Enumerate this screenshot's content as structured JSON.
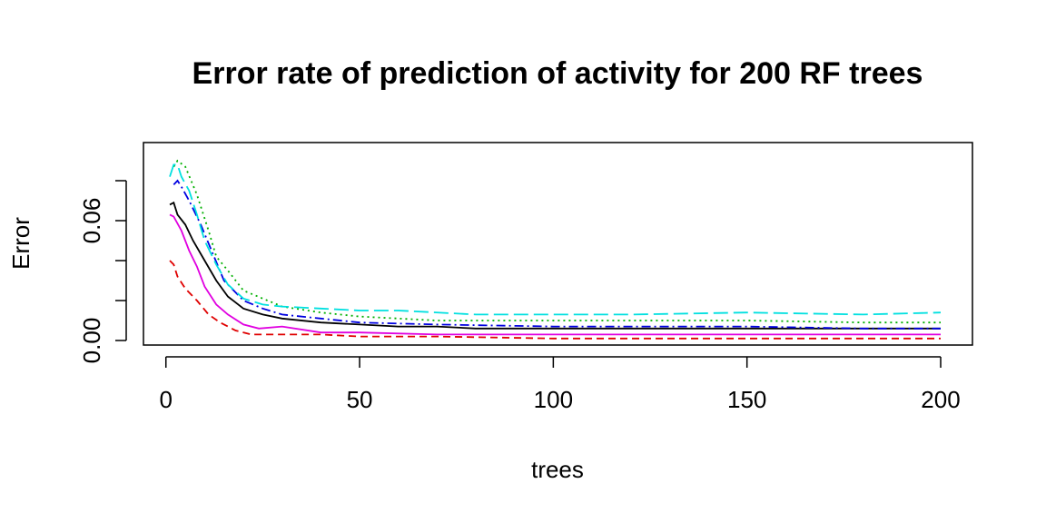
{
  "chart_data": {
    "type": "line",
    "title": "Error rate of prediction of activity for 200 RF trees",
    "xlabel": "trees",
    "ylabel": "Error",
    "xlim": [
      1,
      200
    ],
    "ylim": [
      -0.002,
      0.088
    ],
    "x_ticks": [
      0,
      50,
      100,
      150,
      200
    ],
    "y_ticks": [
      0.0,
      0.02,
      0.04,
      0.06,
      0.08
    ],
    "y_tick_labels": [
      {
        "value": 0.0,
        "label": "0.00"
      },
      {
        "value": 0.06,
        "label": "0.06"
      }
    ],
    "grid": false,
    "legend": "none",
    "series": [
      {
        "key": "oob",
        "color": "#000000",
        "dash": "",
        "points": [
          [
            1,
            0.068
          ],
          [
            2,
            0.069
          ],
          [
            3,
            0.063
          ],
          [
            5,
            0.058
          ],
          [
            7,
            0.05
          ],
          [
            10,
            0.04
          ],
          [
            13,
            0.03
          ],
          [
            16,
            0.022
          ],
          [
            20,
            0.016
          ],
          [
            25,
            0.013
          ],
          [
            30,
            0.011
          ],
          [
            40,
            0.009
          ],
          [
            50,
            0.008
          ],
          [
            60,
            0.007
          ],
          [
            70,
            0.007
          ],
          [
            80,
            0.006
          ],
          [
            100,
            0.006
          ],
          [
            120,
            0.006
          ],
          [
            150,
            0.006
          ],
          [
            180,
            0.006
          ],
          [
            200,
            0.006
          ]
        ]
      },
      {
        "key": "c1",
        "color": "#df0000",
        "dash": "8,5",
        "points": [
          [
            1,
            0.04
          ],
          [
            2,
            0.038
          ],
          [
            3,
            0.032
          ],
          [
            5,
            0.026
          ],
          [
            8,
            0.02
          ],
          [
            11,
            0.013
          ],
          [
            14,
            0.009
          ],
          [
            18,
            0.005
          ],
          [
            22,
            0.003
          ],
          [
            27,
            0.003
          ],
          [
            30,
            0.003
          ],
          [
            40,
            0.003
          ],
          [
            50,
            0.002
          ],
          [
            70,
            0.002
          ],
          [
            100,
            0.001
          ],
          [
            130,
            0.001
          ],
          [
            150,
            0.001
          ],
          [
            180,
            0.001
          ],
          [
            200,
            0.001
          ]
        ]
      },
      {
        "key": "c2",
        "color": "#00b000",
        "dash": "2,4",
        "points": [
          [
            2,
            0.087
          ],
          [
            3,
            0.09
          ],
          [
            5,
            0.087
          ],
          [
            8,
            0.073
          ],
          [
            11,
            0.055
          ],
          [
            13,
            0.042
          ],
          [
            16,
            0.035
          ],
          [
            20,
            0.025
          ],
          [
            25,
            0.021
          ],
          [
            30,
            0.017
          ],
          [
            40,
            0.014
          ],
          [
            50,
            0.012
          ],
          [
            60,
            0.011
          ],
          [
            70,
            0.01
          ],
          [
            100,
            0.01
          ],
          [
            120,
            0.01
          ],
          [
            150,
            0.01
          ],
          [
            180,
            0.009
          ],
          [
            200,
            0.009
          ]
        ]
      },
      {
        "key": "c3",
        "color": "#0000e0",
        "dash": "10,4,2,4",
        "points": [
          [
            2,
            0.078
          ],
          [
            3,
            0.08
          ],
          [
            4,
            0.077
          ],
          [
            6,
            0.07
          ],
          [
            9,
            0.058
          ],
          [
            12,
            0.044
          ],
          [
            15,
            0.03
          ],
          [
            20,
            0.02
          ],
          [
            25,
            0.016
          ],
          [
            30,
            0.013
          ],
          [
            40,
            0.011
          ],
          [
            50,
            0.009
          ],
          [
            70,
            0.008
          ],
          [
            100,
            0.007
          ],
          [
            120,
            0.007
          ],
          [
            150,
            0.007
          ],
          [
            180,
            0.006
          ],
          [
            200,
            0.006
          ]
        ]
      },
      {
        "key": "c4",
        "color": "#00e0e0",
        "dash": "16,6",
        "points": [
          [
            1,
            0.082
          ],
          [
            2,
            0.088
          ],
          [
            3,
            0.088
          ],
          [
            4,
            0.082
          ],
          [
            6,
            0.075
          ],
          [
            8,
            0.063
          ],
          [
            10,
            0.05
          ],
          [
            13,
            0.038
          ],
          [
            16,
            0.028
          ],
          [
            20,
            0.021
          ],
          [
            25,
            0.018
          ],
          [
            30,
            0.017
          ],
          [
            40,
            0.016
          ],
          [
            50,
            0.015
          ],
          [
            60,
            0.015
          ],
          [
            80,
            0.013
          ],
          [
            100,
            0.013
          ],
          [
            120,
            0.013
          ],
          [
            150,
            0.014
          ],
          [
            180,
            0.013
          ],
          [
            200,
            0.014
          ]
        ]
      },
      {
        "key": "c5",
        "color": "#e000e0",
        "dash": "",
        "points": [
          [
            1,
            0.063
          ],
          [
            2,
            0.062
          ],
          [
            4,
            0.055
          ],
          [
            6,
            0.045
          ],
          [
            8,
            0.037
          ],
          [
            10,
            0.027
          ],
          [
            13,
            0.018
          ],
          [
            16,
            0.013
          ],
          [
            20,
            0.008
          ],
          [
            24,
            0.006
          ],
          [
            30,
            0.007
          ],
          [
            40,
            0.004
          ],
          [
            50,
            0.004
          ],
          [
            70,
            0.003
          ],
          [
            100,
            0.003
          ],
          [
            130,
            0.003
          ],
          [
            150,
            0.003
          ],
          [
            180,
            0.003
          ],
          [
            200,
            0.003
          ]
        ]
      }
    ]
  }
}
